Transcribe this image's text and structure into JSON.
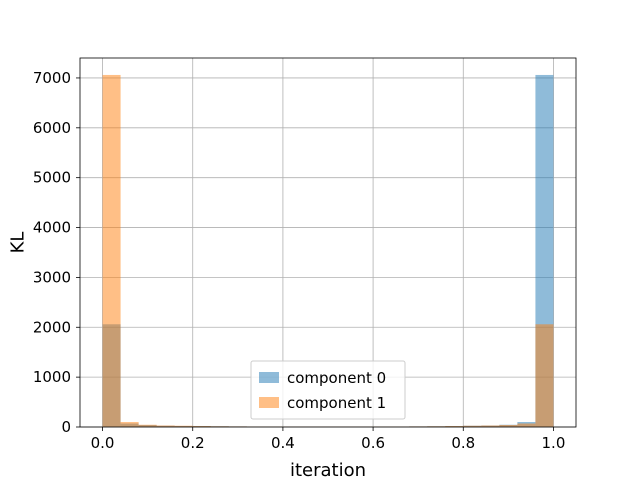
{
  "chart_data": {
    "type": "bar",
    "subtype": "histogram-overlay",
    "title": "",
    "xlabel": "iteration",
    "ylabel": "KL",
    "xlim": [
      -0.05,
      1.05
    ],
    "ylim": [
      0,
      7400
    ],
    "xticks": [
      0.0,
      0.2,
      0.4,
      0.6,
      0.8,
      1.0
    ],
    "xtick_labels": [
      "0.0",
      "0.2",
      "0.4",
      "0.6",
      "0.8",
      "1.0"
    ],
    "yticks": [
      0,
      1000,
      2000,
      3000,
      4000,
      5000,
      6000,
      7000
    ],
    "ytick_labels": [
      "0",
      "1000",
      "2000",
      "3000",
      "4000",
      "5000",
      "6000",
      "7000"
    ],
    "grid": true,
    "legend_position": "lower center",
    "bin_edges": [
      0.0,
      0.04,
      0.08,
      0.12,
      0.16,
      0.2,
      0.24,
      0.28,
      0.32,
      0.36,
      0.4,
      0.44,
      0.48,
      0.52,
      0.56,
      0.6,
      0.64,
      0.68,
      0.72,
      0.76,
      0.8,
      0.84,
      0.88,
      0.92,
      0.96,
      1.0
    ],
    "series": [
      {
        "name": "component 0",
        "color": "#1f77b4",
        "opacity": 0.5,
        "values": [
          2060,
          70,
          40,
          25,
          20,
          20,
          15,
          12,
          10,
          10,
          8,
          8,
          8,
          8,
          8,
          10,
          10,
          12,
          15,
          20,
          25,
          30,
          45,
          100,
          7060
        ]
      },
      {
        "name": "component 1",
        "color": "#ff7f0e",
        "opacity": 0.5,
        "values": [
          7060,
          100,
          45,
          30,
          25,
          20,
          15,
          12,
          10,
          10,
          8,
          8,
          8,
          8,
          8,
          10,
          10,
          12,
          15,
          20,
          25,
          30,
          40,
          70,
          2060
        ]
      }
    ]
  }
}
